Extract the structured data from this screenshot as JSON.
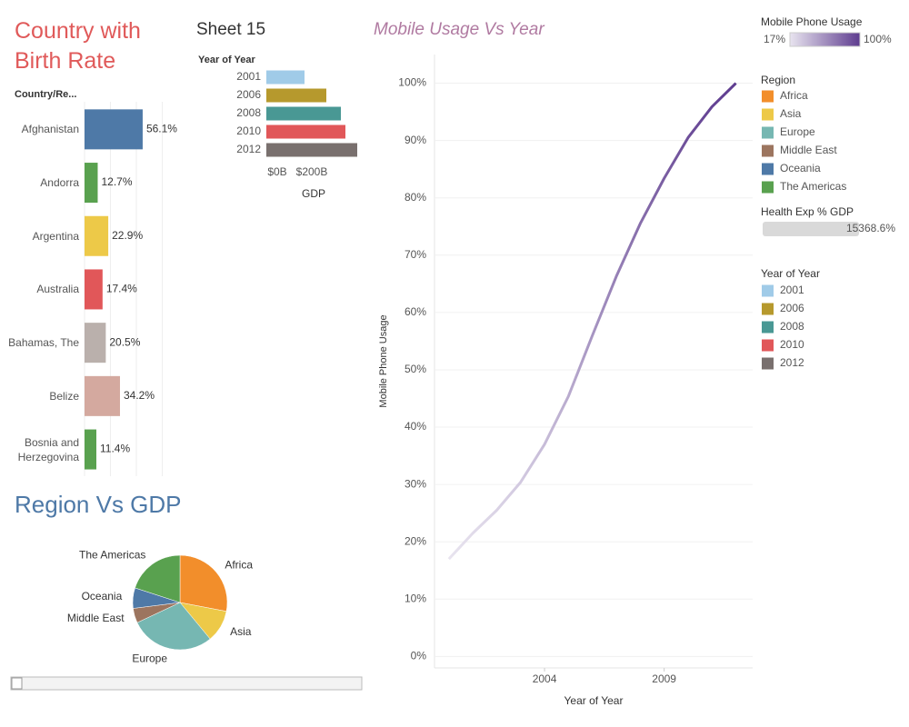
{
  "chart_data": [
    {
      "type": "bar",
      "orientation": "horizontal",
      "title": "Country with Birth Rate",
      "y_label": "Country/Re...",
      "categories": [
        "Afghanistan",
        "Andorra",
        "Argentina",
        "Australia",
        "Bahamas, The",
        "Belize",
        "Bosnia and Herzegovina"
      ],
      "values": [
        56.1,
        12.7,
        22.9,
        17.4,
        20.5,
        34.2,
        11.4
      ],
      "value_labels": [
        "56.1%",
        "12.7%",
        "22.9%",
        "17.4%",
        "20.5%",
        "34.2%",
        "11.4%"
      ],
      "colors": [
        "#4e79a7",
        "#59a14f",
        "#edc948",
        "#e15759",
        "#bab0ac",
        "#d4a99f",
        "#59a14f"
      ],
      "xlim": [
        0,
        100
      ],
      "xticks": [
        0,
        25,
        50,
        75
      ],
      "grid": true
    },
    {
      "type": "bar",
      "orientation": "horizontal",
      "title": "Sheet 15",
      "y_label": "Year of Year",
      "x_label": "GDP",
      "categories": [
        "2001",
        "2006",
        "2008",
        "2010",
        "2012"
      ],
      "values": [
        210,
        330,
        410,
        435,
        500
      ],
      "colors": [
        "#a0cbe8",
        "#b6992d",
        "#499894",
        "#e15759",
        "#79706e"
      ],
      "xlim": [
        0,
        520
      ],
      "xticks": [
        {
          "value": 0,
          "label": "$0B"
        },
        {
          "value": 200,
          "label": "$200B"
        }
      ],
      "legend_title": "Year of Year"
    },
    {
      "type": "pie",
      "title": "Region Vs GDP",
      "legend_title": "Region",
      "categories": [
        "Africa",
        "Asia",
        "Europe",
        "Middle East",
        "Oceania",
        "The Americas"
      ],
      "values": [
        28,
        11,
        29,
        5,
        7,
        20
      ],
      "colors": [
        "#f28e2b",
        "#edc948",
        "#76b7b2",
        "#9c755f",
        "#4e79a7",
        "#59a14f"
      ]
    },
    {
      "type": "line",
      "title": "Mobile Usage Vs Year",
      "x_label": "Year of Year",
      "y_label": "Mobile Phone Usage",
      "x": [
        2000,
        2001,
        2002,
        2003,
        2004,
        2005,
        2006,
        2007,
        2008,
        2009,
        2010,
        2011,
        2012
      ],
      "values": [
        17,
        21.5,
        25.5,
        30.4,
        37.0,
        45.4,
        56.0,
        66.3,
        75.5,
        83.4,
        90.5,
        95.9,
        100
      ],
      "xlim": [
        1999.4,
        2012.7
      ],
      "xticks": [
        2004,
        2009
      ],
      "ylim": [
        -2,
        105
      ],
      "yticks": [
        {
          "value": 0,
          "label": "0%"
        },
        {
          "value": 10,
          "label": "10%"
        },
        {
          "value": 20,
          "label": "20%"
        },
        {
          "value": 30,
          "label": "30%"
        },
        {
          "value": 40,
          "label": "40%"
        },
        {
          "value": 50,
          "label": "50%"
        },
        {
          "value": 60,
          "label": "60%"
        },
        {
          "value": 70,
          "label": "70%"
        },
        {
          "value": 80,
          "label": "80%"
        },
        {
          "value": 90,
          "label": "90%"
        },
        {
          "value": 100,
          "label": "100%"
        }
      ],
      "grid": true,
      "color_title": "Mobile Phone Usage",
      "color_range": [
        "#e8e4ef",
        "#5e3c8f"
      ],
      "color_ticks": [
        {
          "value": 17,
          "label": "17%"
        },
        {
          "value": 100,
          "label": "100%"
        }
      ]
    }
  ],
  "legends": {
    "size_title": "Health Exp % GDP",
    "size_label": "15368.6%"
  }
}
